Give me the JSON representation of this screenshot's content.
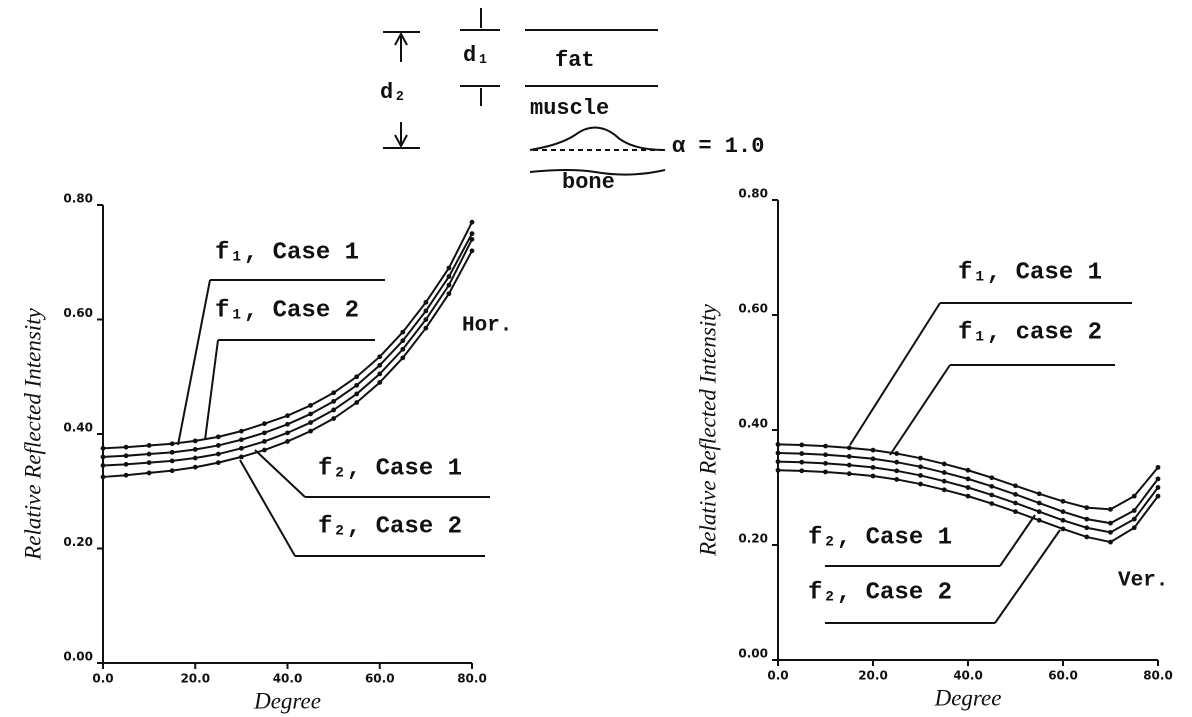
{
  "diagram": {
    "d1": "d₁",
    "d2": "d₂",
    "fat": "fat",
    "muscle": "muscle",
    "bone": "bone",
    "alpha": "α = 1.0"
  },
  "chart_data": [
    {
      "type": "line",
      "xlabel": "Degree",
      "ylabel": "Relative Reflected Intensity",
      "annotation": "Hor.",
      "x": [
        0,
        5,
        10,
        15,
        20,
        25,
        30,
        35,
        40,
        45,
        50,
        55,
        60,
        65,
        70,
        75,
        80
      ],
      "xlim": [
        0,
        80
      ],
      "ylim": [
        0,
        0.8
      ],
      "xticks": [
        {
          "value": 0,
          "label": "0.0"
        },
        {
          "value": 20,
          "label": "20.0"
        },
        {
          "value": 40,
          "label": "40.0"
        },
        {
          "value": 60,
          "label": "60.0"
        },
        {
          "value": 80,
          "label": "80.0"
        }
      ],
      "yticks": [
        {
          "value": 0,
          "label": "0.00"
        },
        {
          "value": 0.2,
          "label": "0.20"
        },
        {
          "value": 0.4,
          "label": "0.40"
        },
        {
          "value": 0.6,
          "label": "0.60"
        },
        {
          "value": 0.8,
          "label": "0.80"
        }
      ],
      "series": [
        {
          "name": "f₁, Case 1",
          "color": "#111",
          "values": [
            0.375,
            0.377,
            0.38,
            0.383,
            0.388,
            0.395,
            0.405,
            0.418,
            0.432,
            0.45,
            0.472,
            0.5,
            0.535,
            0.578,
            0.63,
            0.69,
            0.77
          ]
        },
        {
          "name": "f₁, Case 2",
          "color": "#111",
          "values": [
            0.36,
            0.362,
            0.365,
            0.368,
            0.373,
            0.38,
            0.39,
            0.402,
            0.417,
            0.435,
            0.457,
            0.485,
            0.52,
            0.563,
            0.615,
            0.675,
            0.75
          ]
        },
        {
          "name": "f₂, Case 1",
          "color": "#111",
          "values": [
            0.345,
            0.347,
            0.35,
            0.353,
            0.358,
            0.365,
            0.375,
            0.387,
            0.402,
            0.42,
            0.442,
            0.47,
            0.505,
            0.548,
            0.6,
            0.66,
            0.74
          ]
        },
        {
          "name": "f₂, Case 2",
          "color": "#111",
          "values": [
            0.325,
            0.328,
            0.332,
            0.336,
            0.342,
            0.35,
            0.36,
            0.372,
            0.387,
            0.405,
            0.427,
            0.455,
            0.49,
            0.533,
            0.585,
            0.645,
            0.72
          ]
        }
      ]
    },
    {
      "type": "line",
      "xlabel": "Degree",
      "ylabel": "Relative Reflected Intensity",
      "annotation": "Ver.",
      "x": [
        0,
        5,
        10,
        15,
        20,
        25,
        30,
        35,
        40,
        45,
        50,
        55,
        60,
        65,
        70,
        75,
        80
      ],
      "xlim": [
        0,
        80
      ],
      "ylim": [
        0,
        0.8
      ],
      "xticks": [
        {
          "value": 0,
          "label": "0.0"
        },
        {
          "value": 20,
          "label": "20.0"
        },
        {
          "value": 40,
          "label": "40.0"
        },
        {
          "value": 60,
          "label": "60.0"
        },
        {
          "value": 80,
          "label": "80.0"
        }
      ],
      "yticks": [
        {
          "value": 0,
          "label": "0.00"
        },
        {
          "value": 0.2,
          "label": "0.20"
        },
        {
          "value": 0.4,
          "label": "0.40"
        },
        {
          "value": 0.6,
          "label": "0.60"
        },
        {
          "value": 0.8,
          "label": "0.80"
        }
      ],
      "series": [
        {
          "name": "f₁, Case 1",
          "color": "#111",
          "values": [
            0.375,
            0.374,
            0.372,
            0.369,
            0.365,
            0.359,
            0.351,
            0.341,
            0.33,
            0.317,
            0.303,
            0.289,
            0.276,
            0.265,
            0.262,
            0.285,
            0.335
          ]
        },
        {
          "name": "f₁, case 2",
          "color": "#111",
          "values": [
            0.36,
            0.359,
            0.357,
            0.354,
            0.35,
            0.344,
            0.336,
            0.326,
            0.315,
            0.302,
            0.288,
            0.273,
            0.258,
            0.245,
            0.238,
            0.26,
            0.315
          ]
        },
        {
          "name": "f₂, Case 1",
          "color": "#111",
          "values": [
            0.345,
            0.344,
            0.342,
            0.339,
            0.335,
            0.329,
            0.321,
            0.311,
            0.3,
            0.287,
            0.273,
            0.258,
            0.243,
            0.23,
            0.222,
            0.245,
            0.3
          ]
        },
        {
          "name": "f₂, Case 2",
          "color": "#111",
          "values": [
            0.33,
            0.329,
            0.327,
            0.324,
            0.32,
            0.314,
            0.306,
            0.296,
            0.285,
            0.272,
            0.258,
            0.243,
            0.228,
            0.214,
            0.205,
            0.23,
            0.285
          ]
        }
      ]
    }
  ]
}
